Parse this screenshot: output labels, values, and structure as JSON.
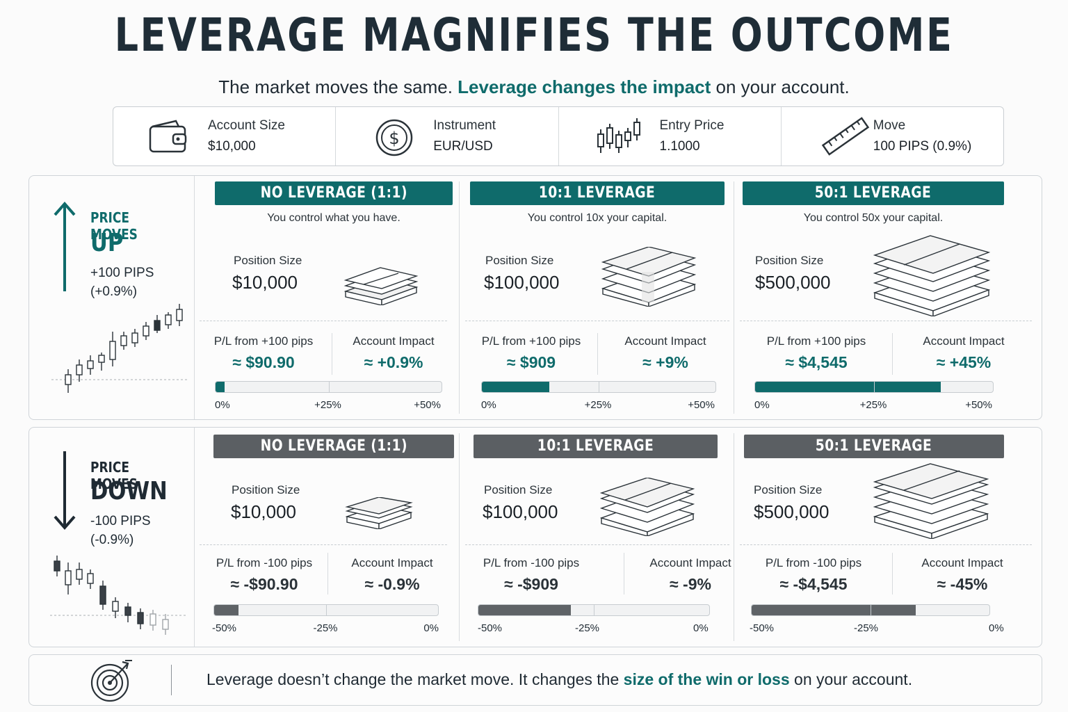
{
  "title": "LEVERAGE MAGNIFIES THE OUTCOME",
  "subtitle": {
    "part1": "The market moves the same. ",
    "highlight": "Leverage changes the impact",
    "part2": " on your account."
  },
  "info": [
    {
      "icon": "wallet-icon",
      "label": "Account Size",
      "value": "$10,000"
    },
    {
      "icon": "dollar-coin-icon",
      "label": "Instrument",
      "value": "EUR/USD"
    },
    {
      "icon": "candlestick-icon",
      "label": "Entry Price",
      "value": "1.1000"
    },
    {
      "icon": "ruler-icon",
      "label": "Move",
      "value": "100 PIPS (0.9%)"
    }
  ],
  "colors": {
    "accent": "#0f6b6b",
    "neutral": "#5b5f63"
  },
  "up": {
    "label_small": "PRICE MOVES",
    "label_big": "UP",
    "pips": "+100 PIPS",
    "pct": "(+0.9%)",
    "ticks": [
      "0%",
      "+25%",
      "+50%"
    ],
    "columns": [
      {
        "banner": "NO LEVERAGE (1:1)",
        "tagline": "You control what you have.",
        "pos_label": "Position Size",
        "pos_value": "$10,000",
        "pl_label": "P/L from +100 pips",
        "pl_value": "≈ $90.90",
        "impact_label": "Account Impact",
        "impact_value": "≈ +0.9%",
        "bar": 0.04
      },
      {
        "banner": "10:1 LEVERAGE",
        "tagline": "You control 10x your capital.",
        "pos_label": "Position Size",
        "pos_value": "$100,000",
        "pl_label": "P/L from +100 pips",
        "pl_value": "≈ $909",
        "impact_label": "Account Impact",
        "impact_value": "≈ +9%",
        "bar": 0.29
      },
      {
        "banner": "50:1 LEVERAGE",
        "tagline": "You control 50x your capital.",
        "pos_label": "Position Size",
        "pos_value": "$500,000",
        "pl_label": "P/L from +100 pips",
        "pl_value": "≈ $4,545",
        "impact_label": "Account Impact",
        "impact_value": "≈ +45%",
        "bar": 0.78
      }
    ]
  },
  "down": {
    "label_small": "PRICE MOVES",
    "label_big": "DOWN",
    "pips": "-100 PIPS",
    "pct": "(-0.9%)",
    "ticks": [
      "-50%",
      "-25%",
      "0%"
    ],
    "columns": [
      {
        "banner": "NO LEVERAGE (1:1)",
        "pos_label": "Position Size",
        "pos_value": "$10,000",
        "pl_label": "P/L from -100 pips",
        "pl_value": "≈ -$90.90",
        "impact_label": "Account Impact",
        "impact_value": "≈ -0.9%",
        "bar": 0.11
      },
      {
        "banner": "10:1 LEVERAGE",
        "pos_label": "Position Size",
        "pos_value": "$100,000",
        "pl_label": "P/L from -100 pips",
        "pl_value": "≈ -$909",
        "impact_label": "Account Impact",
        "impact_value": "≈ -9%",
        "bar": 0.4
      },
      {
        "banner": "50:1 LEVERAGE",
        "pos_label": "Position Size",
        "pos_value": "$500,000",
        "pl_label": "P/L from -100 pips",
        "pl_value": "≈ -$4,545",
        "impact_label": "Account Impact",
        "impact_value": "≈ -45%",
        "bar": 0.69
      }
    ]
  },
  "footer": {
    "icon": "target-icon",
    "part1": "Leverage doesn’t change the market move. It changes the ",
    "highlight": "size of the win or loss",
    "part2": " on your account."
  }
}
